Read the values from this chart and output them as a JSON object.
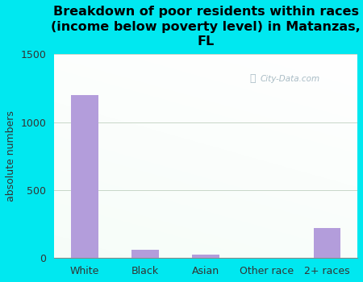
{
  "title": "Breakdown of poor residents within races\n(income below poverty level) in Matanzas,\nFL",
  "categories": [
    "White",
    "Black",
    "Asian",
    "Other race",
    "2+ races"
  ],
  "values": [
    1200,
    60,
    25,
    0,
    220
  ],
  "bar_color": "#b39ddb",
  "ylabel": "absolute numbers",
  "ylim": [
    0,
    1500
  ],
  "yticks": [
    0,
    500,
    1000,
    1500
  ],
  "bg_outer": "#00e8f0",
  "watermark": "City-Data.com",
  "title_fontsize": 11.5,
  "label_fontsize": 9,
  "tick_fontsize": 9
}
